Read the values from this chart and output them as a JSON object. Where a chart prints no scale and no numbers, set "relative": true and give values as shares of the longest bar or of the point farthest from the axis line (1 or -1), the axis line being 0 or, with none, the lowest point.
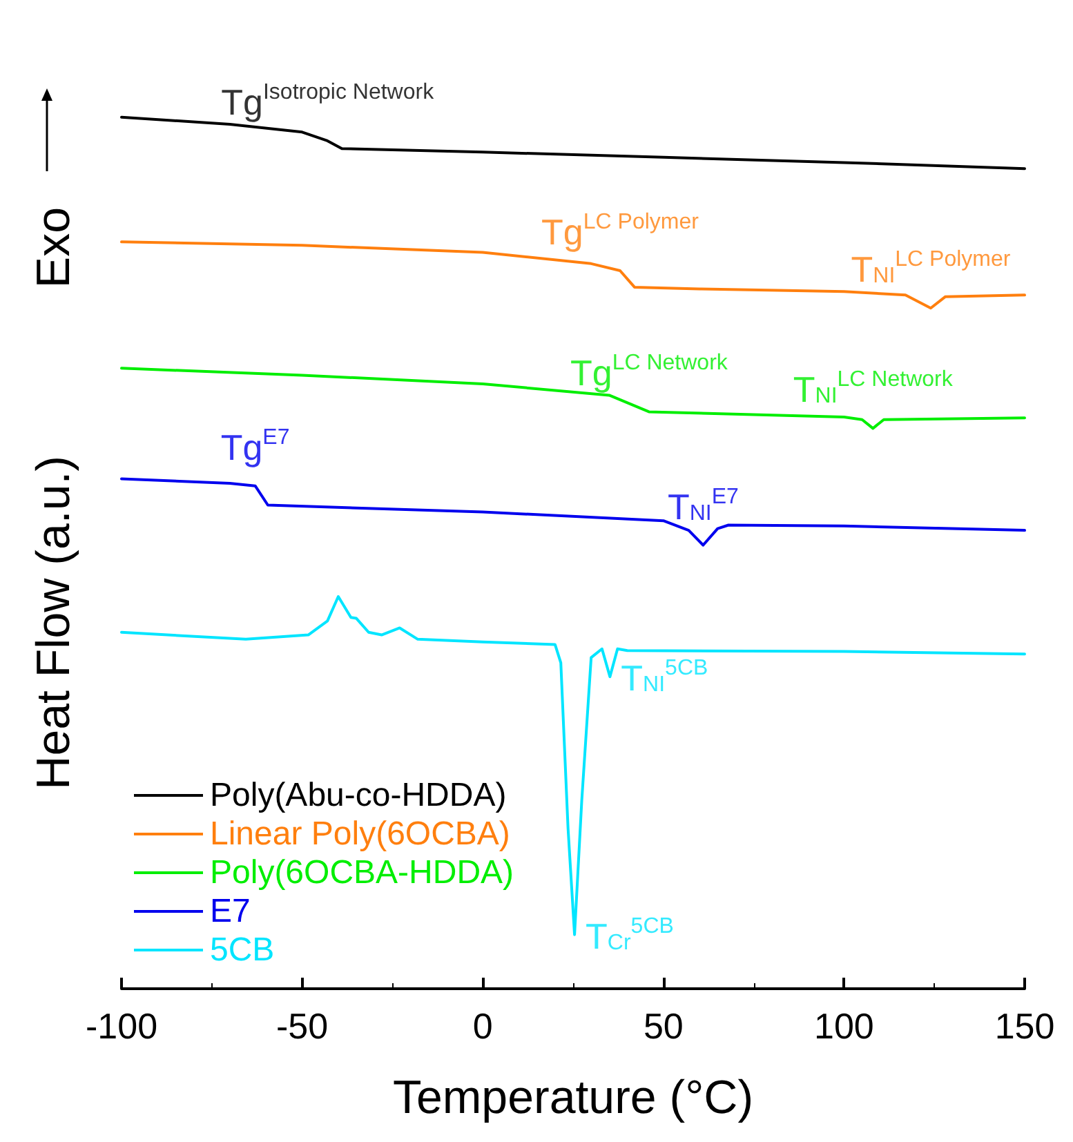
{
  "chart_data": {
    "type": "line",
    "relative": true,
    "xlabel": "Temperature (°C)",
    "ylabel": "Heat Flow (a.u.)",
    "xlim": [
      -100,
      150
    ],
    "xticks": [
      -100,
      -50,
      0,
      50,
      100,
      150
    ],
    "legend": "bottom left",
    "marker": "none",
    "line_style": "solid",
    "grid": false,
    "series": [
      {
        "name": "Poly(Abu-co-HDDA)",
        "color": "#000000",
        "x": [
          -100,
          -70,
          -50,
          -43,
          -39,
          0,
          50,
          100,
          150
        ],
        "values": [
          1.0,
          0.992,
          0.983,
          0.973,
          0.964,
          0.96,
          0.954,
          0.948,
          0.941
        ]
      },
      {
        "name": "Linear Poly(6OCBA)",
        "color": "#ff7f0e",
        "x": [
          -100,
          -50,
          0,
          30,
          38,
          42,
          60,
          100,
          117,
          124,
          128,
          150
        ],
        "values": [
          0.857,
          0.853,
          0.845,
          0.832,
          0.824,
          0.805,
          0.803,
          0.8,
          0.796,
          0.781,
          0.794,
          0.796
        ]
      },
      {
        "name": "Poly(6OCBA-HDDA)",
        "color": "#00ee00",
        "x": [
          -100,
          -50,
          0,
          35,
          46,
          100,
          105,
          108,
          111,
          150
        ],
        "values": [
          0.712,
          0.704,
          0.694,
          0.681,
          0.662,
          0.656,
          0.653,
          0.643,
          0.653,
          0.655
        ]
      },
      {
        "name": "E7",
        "color": "#0000ee",
        "x": [
          -100,
          -70,
          -63,
          -59.5,
          0,
          50,
          57,
          61,
          65,
          68,
          100,
          150
        ],
        "values": [
          0.585,
          0.58,
          0.577,
          0.555,
          0.547,
          0.537,
          0.526,
          0.509,
          0.528,
          0.532,
          0.531,
          0.526
        ]
      },
      {
        "name": "5CB",
        "color": "#00e5ff",
        "x": [
          -100,
          -65.6,
          -48.3,
          -43,
          -40,
          -36.5,
          -35,
          -31.6,
          -28,
          -23,
          -18,
          0,
          20,
          21.6,
          23.6,
          25.4,
          27.4,
          30,
          33,
          35.2,
          37.3,
          40,
          100,
          150
        ],
        "values": [
          0.409,
          0.401,
          0.406,
          0.422,
          0.45,
          0.426,
          0.425,
          0.409,
          0.406,
          0.414,
          0.401,
          0.398,
          0.395,
          0.374,
          0.184,
          0.062,
          0.216,
          0.38,
          0.39,
          0.358,
          0.39,
          0.388,
          0.387,
          0.384
        ]
      }
    ],
    "annotations": [
      "Exo",
      {
        "text": "Tg$^{Isotropic Network}$",
        "x": -43,
        "y": 0.973
      },
      {
        "text": "Tg$^{LC Polymer}$",
        "x": 38,
        "y": 0.824
      },
      {
        "text": "T$_{NI}$$^{LC Polymer}$",
        "x": 124,
        "y": 0.781
      },
      {
        "text": "Tg$^{LC Network}$",
        "x": 46,
        "y": 0.662
      },
      {
        "text": "T$_{NI}$$^{LC Network}$",
        "x": 108,
        "y": 0.643
      },
      {
        "text": "Tg$^{E7}$",
        "x": -63,
        "y": 0.577
      },
      {
        "text": "T$_{NI}$$^{E7}$",
        "x": 61,
        "y": 0.509
      },
      {
        "text": "T$_{NI}$$^{5CB}$",
        "x": 35.2,
        "y": 0.358
      },
      {
        "text": "T$_{Cr}$$^{5CB}$",
        "x": 25.4,
        "y": 0.062
      }
    ]
  }
}
